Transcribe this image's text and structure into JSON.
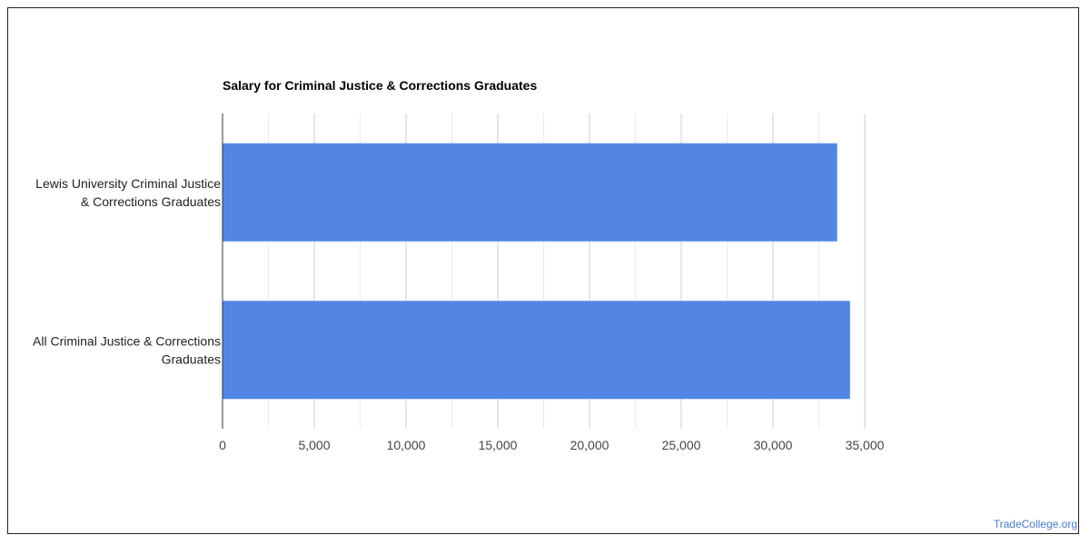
{
  "chart_data": {
    "type": "bar",
    "orientation": "horizontal",
    "title": "Salary for Criminal Justice & Corrections Graduates",
    "categories": [
      [
        "Lewis University Criminal Justice",
        "& Corrections Graduates"
      ],
      [
        "All Criminal Justice & Corrections",
        "Graduates"
      ]
    ],
    "values": [
      33500,
      34200
    ],
    "xlim": [
      0,
      35000
    ],
    "xticks": [
      0,
      5000,
      10000,
      15000,
      20000,
      25000,
      30000,
      35000
    ],
    "xtick_labels": [
      "0",
      "5,000",
      "10,000",
      "15,000",
      "20,000",
      "25,000",
      "30,000",
      "35,000"
    ],
    "bar_color": "#5386e4",
    "grid": true
  },
  "watermark": "TradeCollege.org"
}
